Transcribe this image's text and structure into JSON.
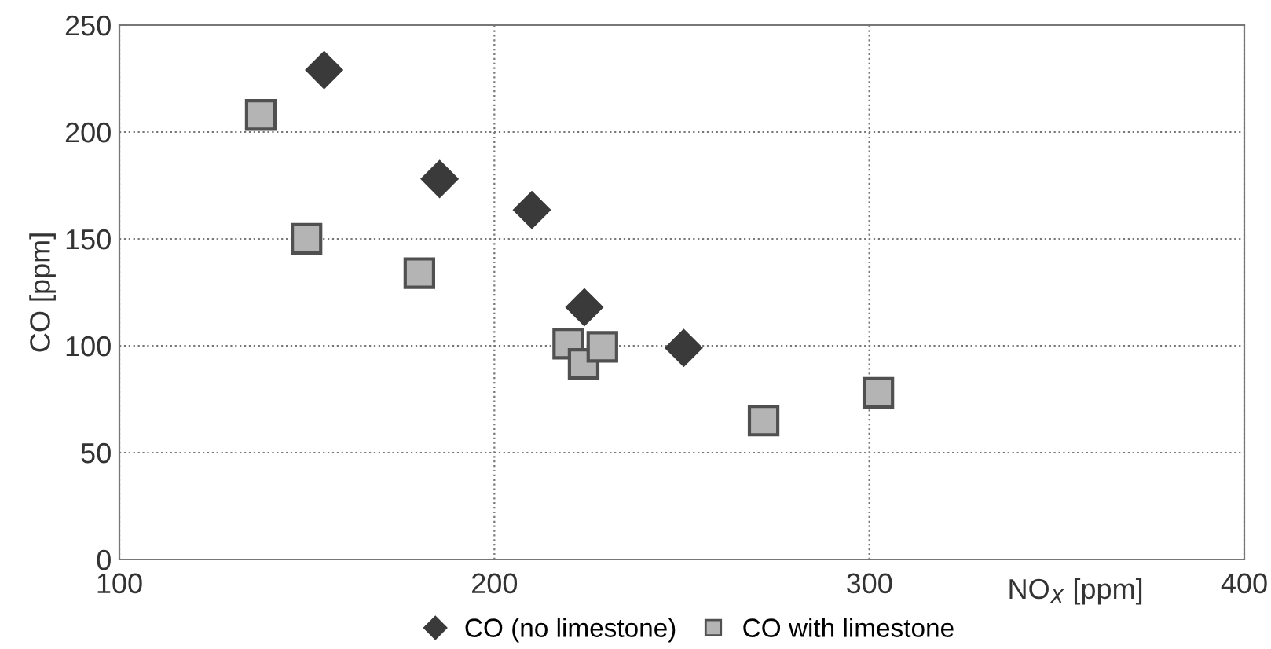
{
  "chart_data": {
    "type": "scatter",
    "xlabel": "NO$_{X}$ [ppm]",
    "ylabel": "CO [ppm]",
    "xlim": [
      100,
      400
    ],
    "xticks": [
      100,
      200,
      300,
      400
    ],
    "ylim": [
      0,
      250
    ],
    "yticks": [
      0,
      50,
      100,
      150,
      200,
      250
    ],
    "grid": true,
    "legend": "bottom",
    "series": [
      {
        "name": "CO (no limestone)",
        "color": "#3a3a3a",
        "marker": "diamond",
        "x": [
          154.6,
          185.4,
          210,
          224,
          250.5
        ],
        "values": [
          229,
          178,
          163.5,
          118,
          99
        ]
      },
      {
        "name": "CO with limestone",
        "color": "#b4b4b4",
        "marker": "square",
        "x": [
          137.7,
          149.9,
          180,
          219.7,
          223.8,
          228.8,
          271.8,
          302.4
        ],
        "values": [
          208,
          150,
          134,
          101,
          91.5,
          99.5,
          65,
          78
        ]
      }
    ]
  }
}
